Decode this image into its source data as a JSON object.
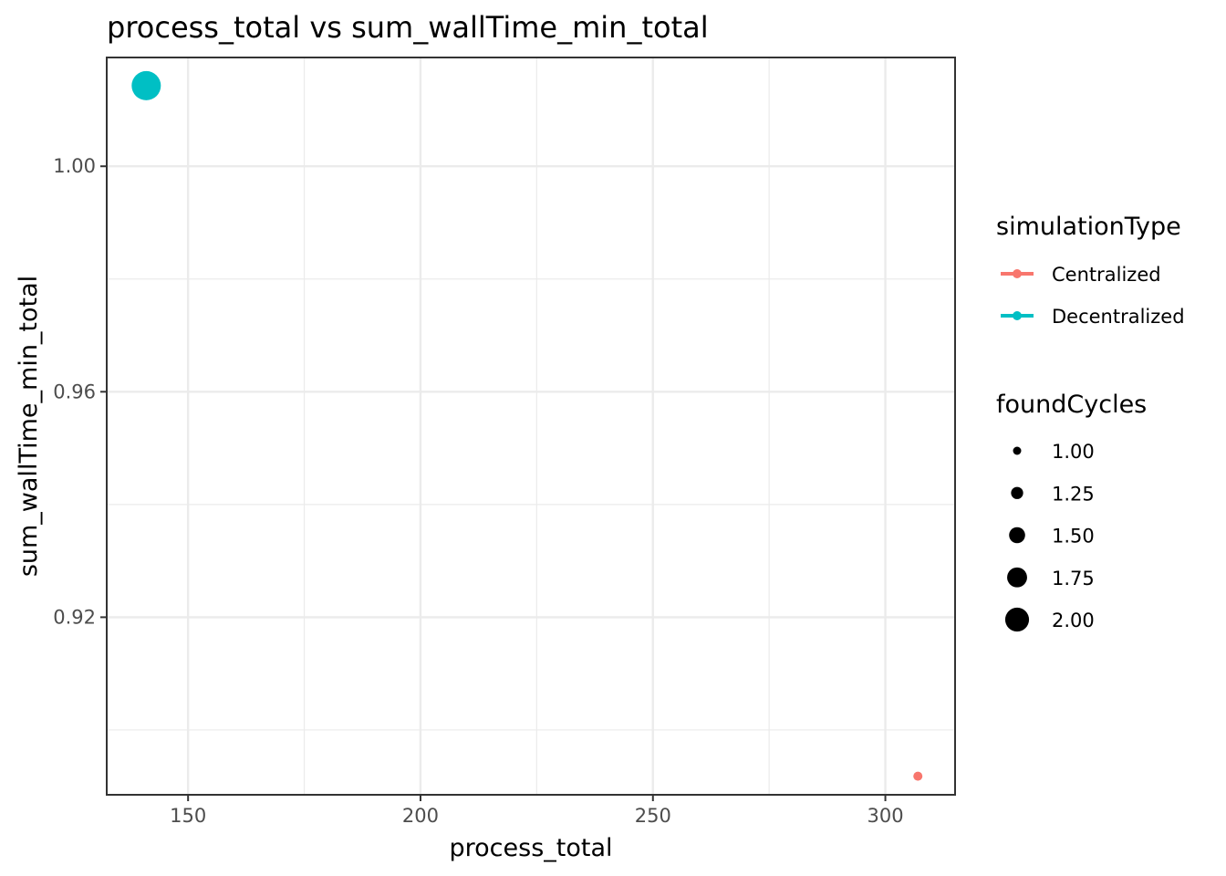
{
  "chart_data": {
    "type": "scatter",
    "title": "process_total  vs  sum_wallTime_min_total",
    "xlabel": "process_total",
    "ylabel": "sum_wallTime_min_total",
    "xlim": [
      132.5,
      315.0
    ],
    "ylim": [
      0.8885,
      1.0193
    ],
    "x_ticks": [
      150,
      200,
      250,
      300
    ],
    "x_tick_labels": [
      "150",
      "200",
      "250",
      "300"
    ],
    "y_ticks": [
      0.92,
      0.96,
      1.0
    ],
    "y_tick_labels": [
      "0.92",
      "0.96",
      "1.00"
    ],
    "grid": true,
    "legend_placement": "right",
    "series": [
      {
        "name": "Centralized",
        "color": "#F8766D",
        "points": [
          {
            "x": 307,
            "y": 0.8918,
            "foundCycles": 1.0
          }
        ]
      },
      {
        "name": "Decentralized",
        "color": "#00BFC4",
        "points": [
          {
            "x": 141,
            "y": 1.0143,
            "foundCycles": 2.0
          }
        ]
      }
    ],
    "color_legend": {
      "title": "simulationType",
      "items": [
        {
          "label": "Centralized",
          "color": "#F8766D"
        },
        {
          "label": "Decentralized",
          "color": "#00BFC4"
        }
      ]
    },
    "size_legend": {
      "title": "foundCycles",
      "items": [
        {
          "label": "1.00",
          "value": 1.0
        },
        {
          "label": "1.25",
          "value": 1.25
        },
        {
          "label": "1.50",
          "value": 1.5
        },
        {
          "label": "1.75",
          "value": 1.75
        },
        {
          "label": "2.00",
          "value": 2.0
        }
      ]
    }
  }
}
